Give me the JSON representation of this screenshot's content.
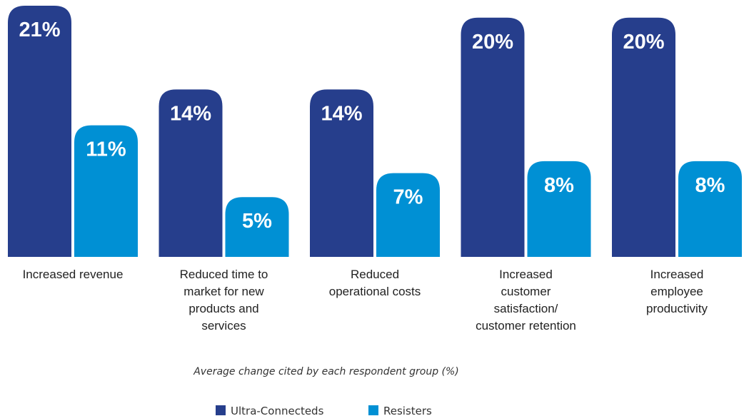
{
  "chart_data": {
    "type": "bar",
    "categories": [
      [
        "Increased revenue"
      ],
      [
        "Reduced time to",
        "market for new",
        "products and",
        "services"
      ],
      [
        "Reduced",
        "operational costs"
      ],
      [
        "Increased",
        "customer",
        "satisfaction/",
        "customer retention"
      ],
      [
        "Increased",
        "employee",
        "productivity"
      ]
    ],
    "series": [
      {
        "name": "Ultra-Connecteds",
        "color": "#263e8c",
        "values": [
          21,
          14,
          14,
          20,
          20
        ],
        "labels": [
          "21%",
          "14%",
          "14%",
          "20%",
          "20%"
        ]
      },
      {
        "name": "Resisters",
        "color": "#0090d4",
        "values": [
          11,
          5,
          7,
          8,
          8
        ],
        "labels": [
          "11%",
          "5%",
          "7%",
          "8%",
          "8%"
        ]
      }
    ],
    "caption": "Average change cited by each respondent group (%)",
    "ylim": [
      0,
      21
    ],
    "grid": false,
    "legend": "bottom-center"
  }
}
